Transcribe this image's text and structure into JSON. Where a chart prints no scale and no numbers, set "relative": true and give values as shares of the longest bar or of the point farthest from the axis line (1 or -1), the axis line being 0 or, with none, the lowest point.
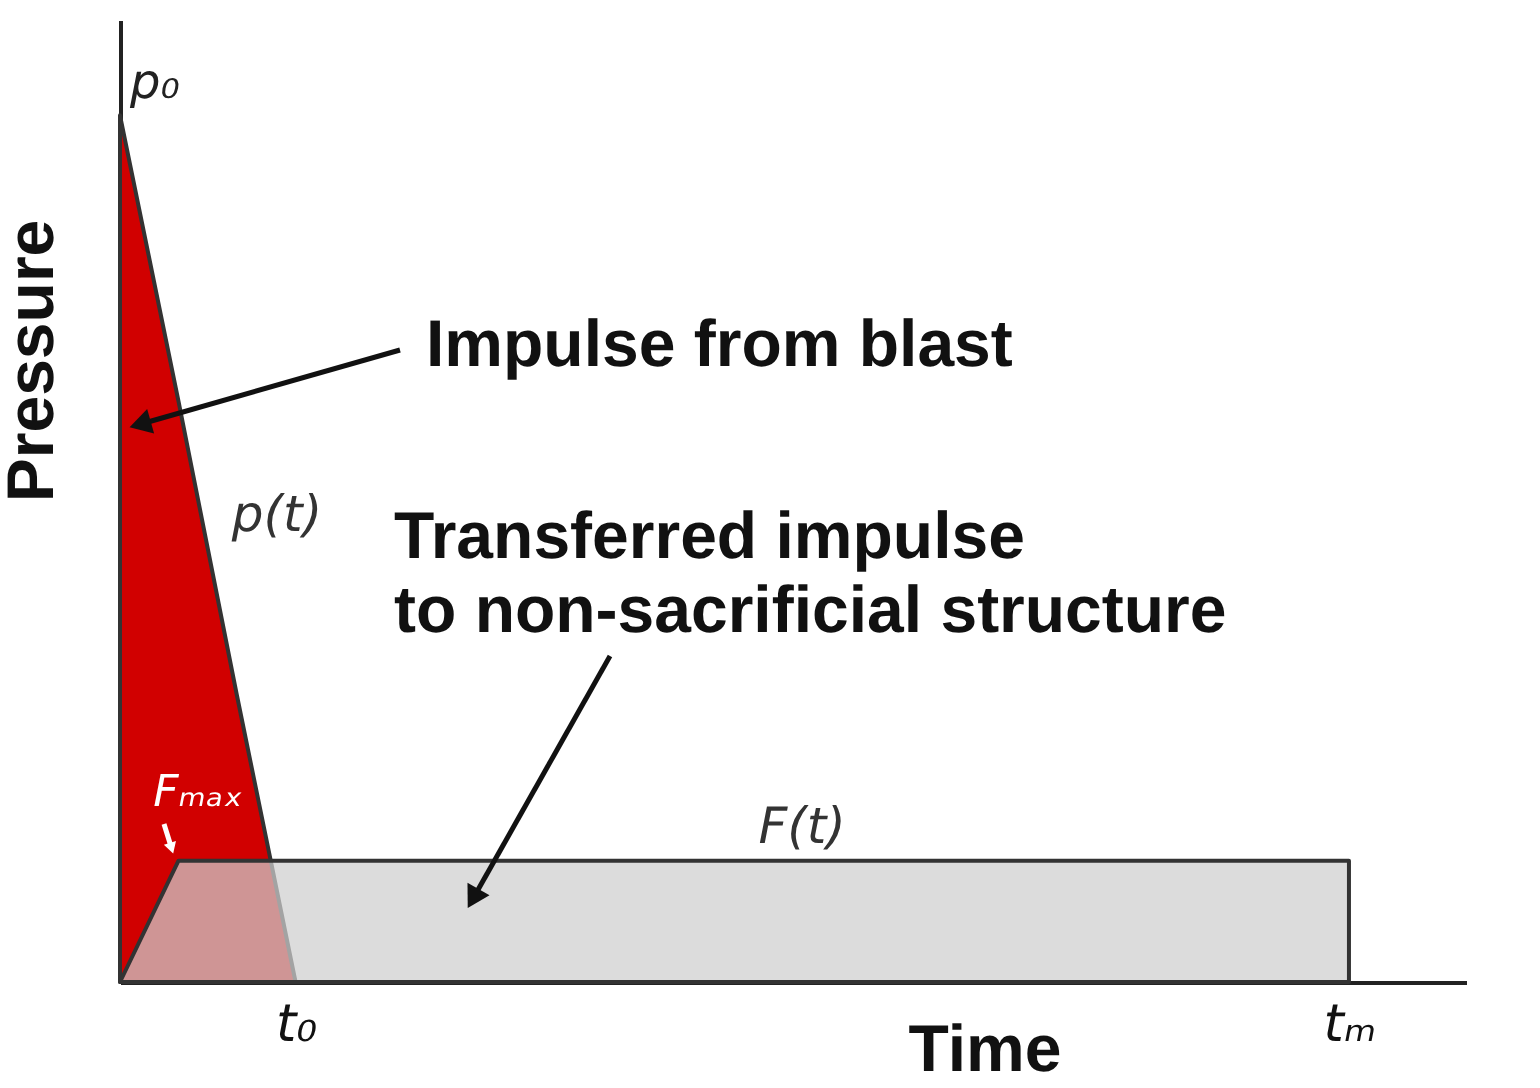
{
  "chart_data": {
    "type": "area",
    "relative": true,
    "xlabel": "Time",
    "ylabel": "Pressure",
    "categories": [
      null,
      null,
      null,
      "t₀",
      null,
      null,
      null,
      null,
      null,
      null,
      null,
      null,
      null,
      null,
      null,
      null,
      null,
      null,
      null,
      null,
      null,
      "tₘ",
      null,
      null
    ],
    "series": [
      {
        "name": "p(t)",
        "color": "#d10000",
        "values": [
          1,
          0.67,
          0.33,
          0,
          null,
          null,
          null,
          null,
          null,
          null,
          null,
          null,
          null,
          null,
          null,
          null,
          null,
          null,
          null,
          null,
          null,
          null,
          null,
          null
        ]
      },
      {
        "name": "F(t)",
        "color": "#cfcfcf",
        "values": [
          0,
          0.14,
          0.14,
          0.14,
          0.14,
          0.14,
          0.14,
          0.14,
          0.14,
          0.14,
          0.14,
          0.14,
          0.14,
          0.14,
          0.14,
          0.14,
          0.14,
          0.14,
          0.14,
          0.14,
          0.14,
          0.14,
          null,
          null
        ]
      }
    ],
    "annotations": [
      "p₀",
      "Impulse from blast",
      "Transferred impulse\nto non-sacrificial structure",
      "Fₘₐₓ"
    ]
  }
}
